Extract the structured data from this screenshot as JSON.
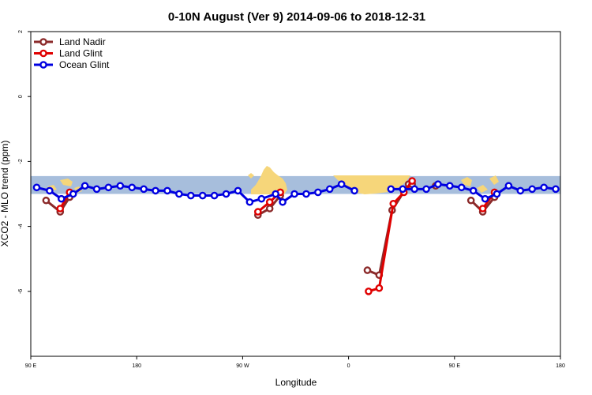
{
  "chart_data": {
    "type": "line",
    "title": "0-10N August (Ver 9)   2014-09-06 to 2018-12-31",
    "xlabel": "Longitude",
    "ylabel": "XCO2 - MLO trend (ppm)",
    "xlim": [
      90,
      540
    ],
    "ylim": [
      -8,
      2
    ],
    "x_ticks": [
      {
        "value": 90,
        "label": "90 E"
      },
      {
        "value": 180,
        "label": "180"
      },
      {
        "value": 270,
        "label": "90 W"
      },
      {
        "value": 360,
        "label": "0"
      },
      {
        "value": 450,
        "label": "90 E"
      },
      {
        "value": 540,
        "label": "180"
      }
    ],
    "y_ticks": [
      {
        "value": 2,
        "label": "2"
      },
      {
        "value": 0,
        "label": "0"
      },
      {
        "value": -2,
        "label": "-2"
      },
      {
        "value": -4,
        "label": "-4"
      },
      {
        "value": -6,
        "label": "-6"
      }
    ],
    "legend_position": "top-left",
    "grid": false,
    "map_band": {
      "y_min": -3.0,
      "y_max": -2.45,
      "ocean_color": "#a7bedc",
      "land_color": "#f6d67a"
    },
    "series": [
      {
        "name": "Land Nadir",
        "color": "#8b2a2a",
        "segments": [
          [
            [
              103,
              -3.2
            ],
            [
              115,
              -3.55
            ],
            [
              123,
              -3.1
            ]
          ],
          [
            [
              283,
              -3.65
            ],
            [
              293,
              -3.45
            ],
            [
              302,
              -3.05
            ]
          ],
          [
            [
              376,
              -5.35
            ],
            [
              386,
              -5.5
            ],
            [
              397,
              -3.5
            ],
            [
              411,
              -2.7
            ],
            [
              414,
              -2.7
            ]
          ],
          [
            [
              434,
              -2.75
            ]
          ],
          [
            [
              464,
              -3.2
            ],
            [
              474,
              -3.55
            ],
            [
              484,
              -3.1
            ]
          ]
        ]
      },
      {
        "name": "Land Glint",
        "color": "#e00000",
        "segments": [
          [
            [
              115,
              -3.45
            ],
            [
              123,
              -2.95
            ]
          ],
          [
            [
              283,
              -3.55
            ],
            [
              293,
              -3.25
            ],
            [
              302,
              -2.95
            ]
          ],
          [
            [
              377,
              -6.0
            ],
            [
              386,
              -5.9
            ],
            [
              398,
              -3.3
            ],
            [
              407,
              -2.95
            ],
            [
              414,
              -2.6
            ]
          ],
          [
            [
              474,
              -3.45
            ],
            [
              484,
              -2.95
            ]
          ]
        ]
      },
      {
        "name": "Ocean Glint",
        "color": "#0000e0",
        "segments": [
          [
            [
              95,
              -2.8
            ],
            [
              106,
              -2.9
            ],
            [
              116,
              -3.15
            ],
            [
              126,
              -3.0
            ],
            [
              136,
              -2.75
            ],
            [
              146,
              -2.85
            ],
            [
              156,
              -2.8
            ],
            [
              166,
              -2.75
            ],
            [
              176,
              -2.8
            ],
            [
              186,
              -2.85
            ],
            [
              196,
              -2.9
            ],
            [
              206,
              -2.9
            ],
            [
              216,
              -3.0
            ],
            [
              226,
              -3.05
            ],
            [
              236,
              -3.05
            ],
            [
              246,
              -3.05
            ],
            [
              256,
              -3.0
            ],
            [
              266,
              -2.9
            ],
            [
              276,
              -3.25
            ],
            [
              286,
              -3.15
            ],
            [
              298,
              -3.0
            ],
            [
              304,
              -3.25
            ],
            [
              314,
              -3.0
            ],
            [
              324,
              -3.0
            ],
            [
              334,
              -2.95
            ],
            [
              344,
              -2.85
            ],
            [
              354,
              -2.7
            ],
            [
              365,
              -2.9
            ]
          ],
          [
            [
              396,
              -2.85
            ],
            [
              406,
              -2.85
            ],
            [
              416,
              -2.85
            ],
            [
              426,
              -2.85
            ],
            [
              436,
              -2.7
            ],
            [
              446,
              -2.75
            ],
            [
              456,
              -2.8
            ],
            [
              466,
              -2.9
            ],
            [
              476,
              -3.15
            ],
            [
              486,
              -3.0
            ],
            [
              496,
              -2.75
            ],
            [
              506,
              -2.9
            ],
            [
              516,
              -2.85
            ],
            [
              526,
              -2.8
            ],
            [
              536,
              -2.85
            ]
          ]
        ]
      }
    ]
  }
}
